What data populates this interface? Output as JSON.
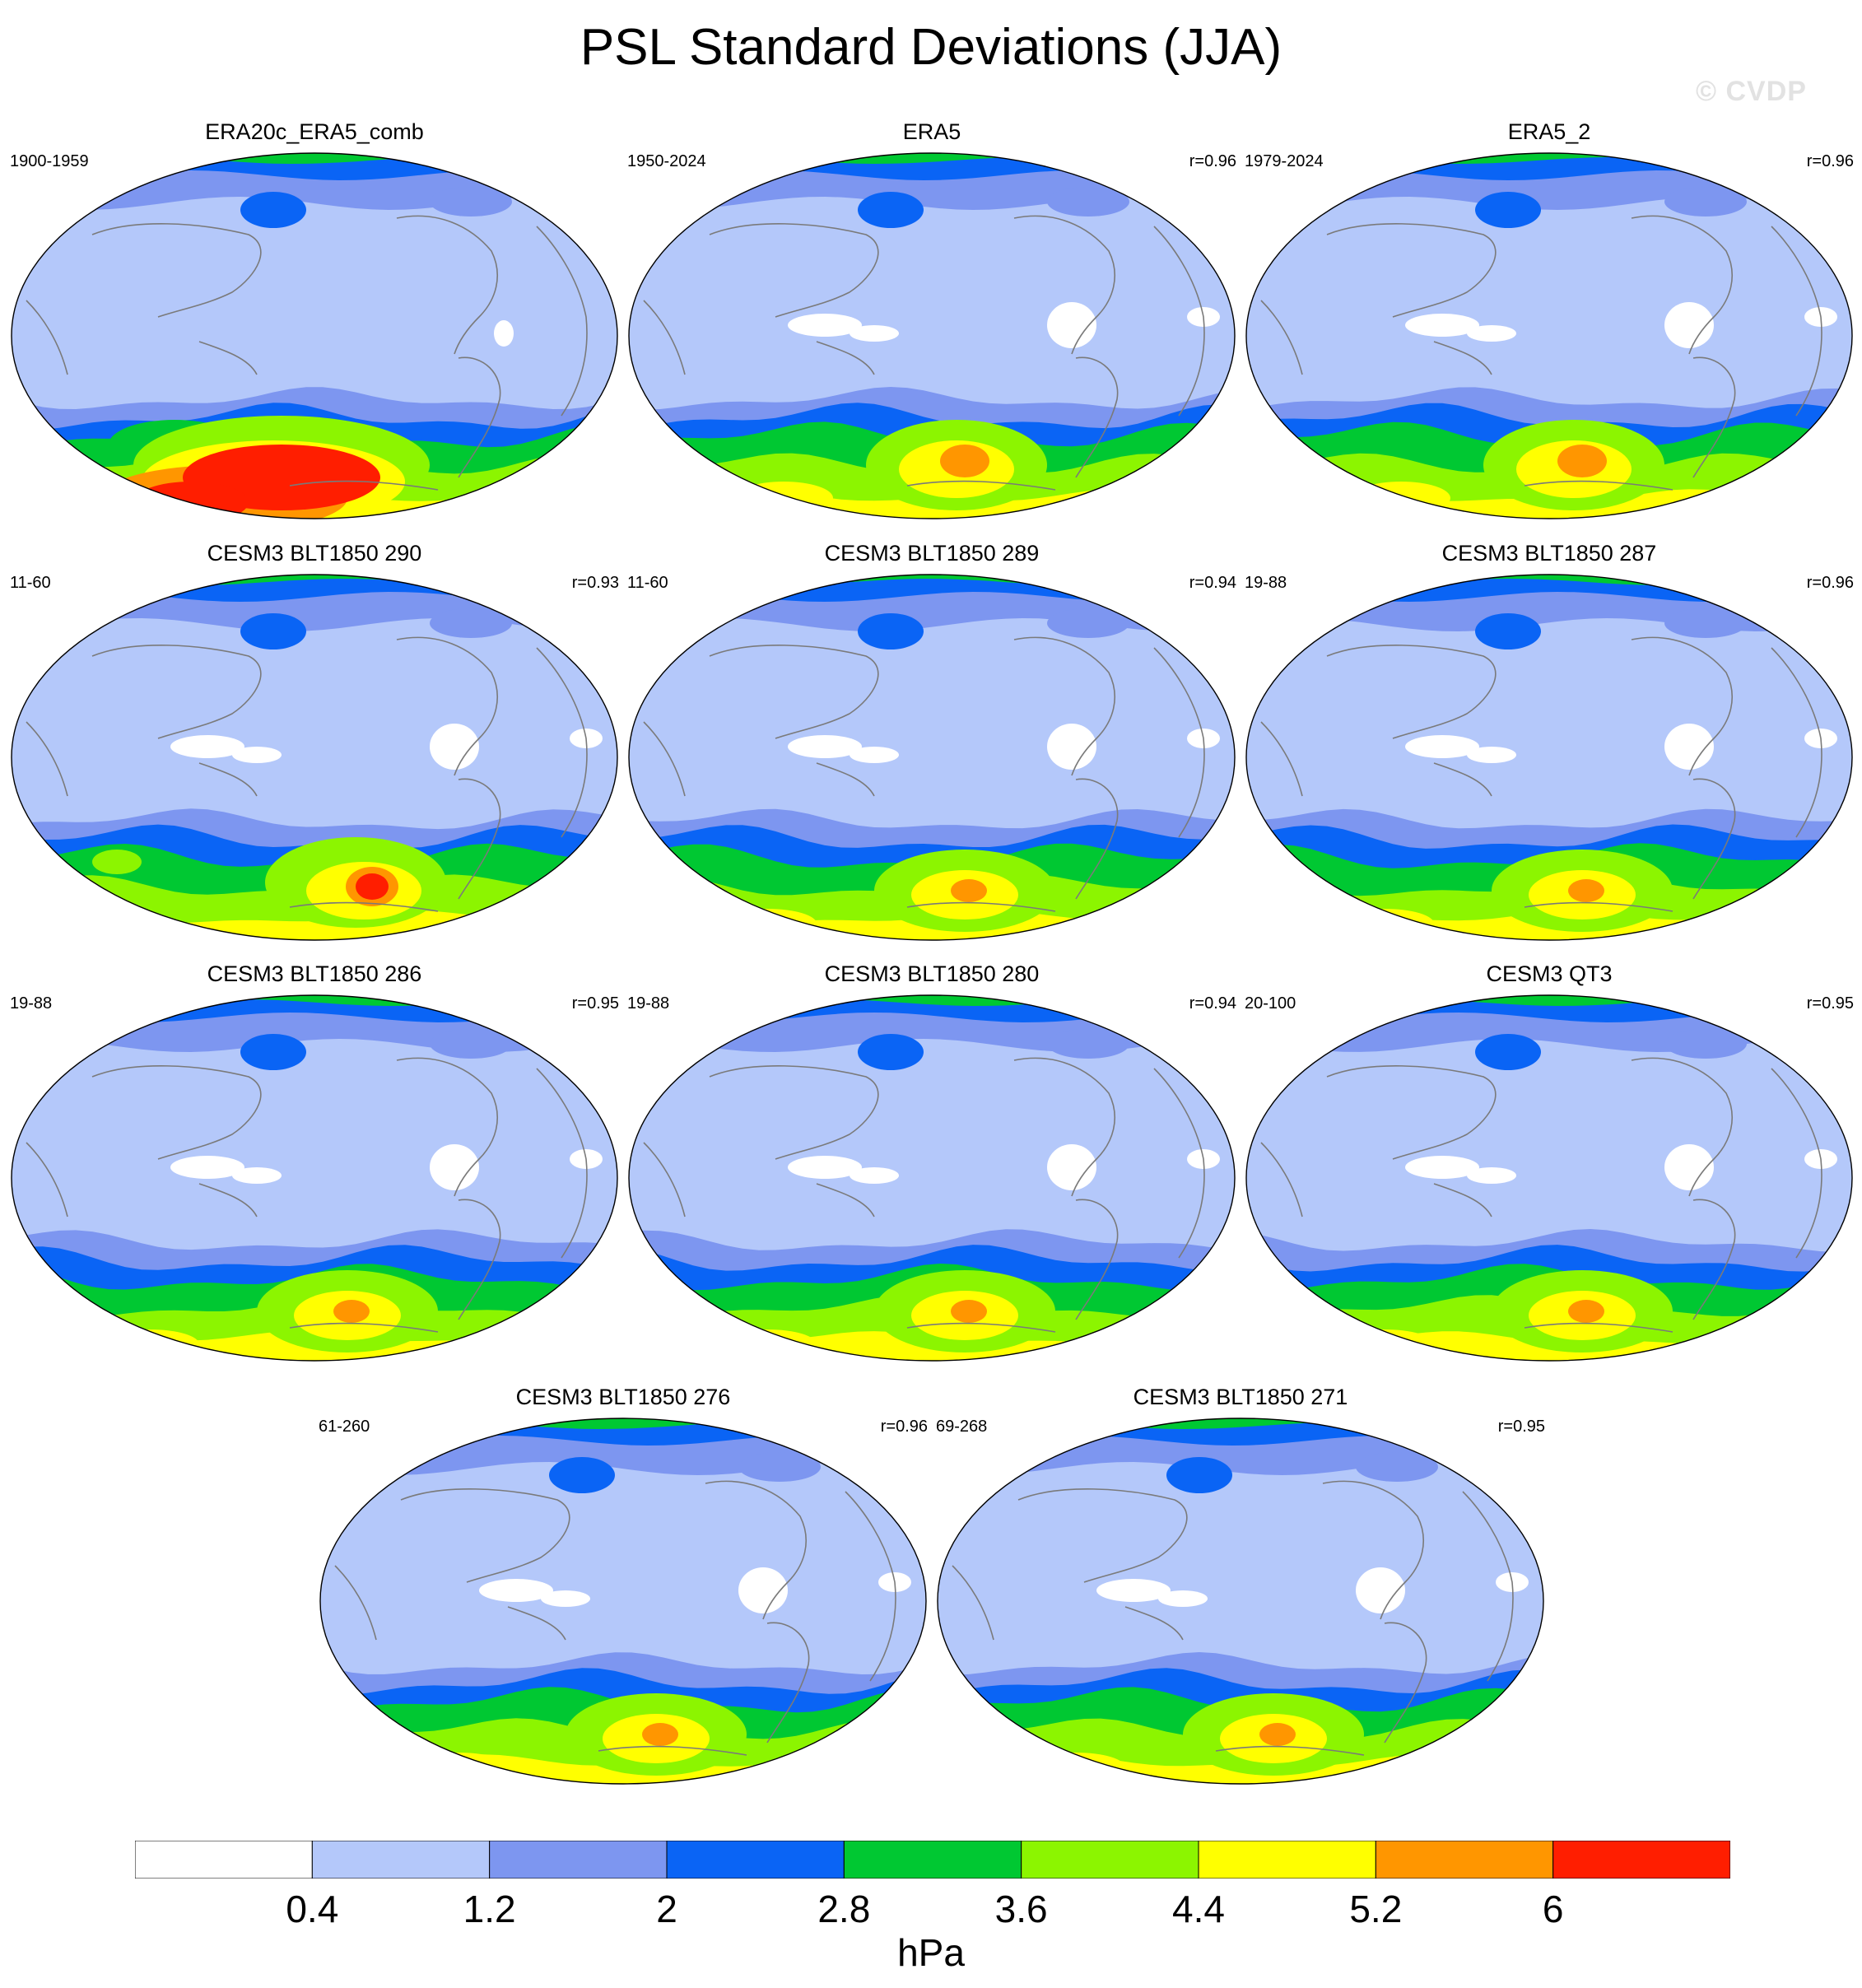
{
  "title": "PSL Standard Deviations (JJA)",
  "watermark": "© CVDP",
  "panels": [
    {
      "title": "ERA20c_ERA5_comb",
      "period": "1900-1959",
      "r": "",
      "variant": "obs20c"
    },
    {
      "title": "ERA5",
      "period": "1950-2024",
      "r": "r=0.96",
      "variant": "era5"
    },
    {
      "title": "ERA5_2",
      "period": "1979-2024",
      "r": "r=0.96",
      "variant": "era5"
    },
    {
      "title": "CESM3 BLT1850 290",
      "period": "11-60",
      "r": "r=0.93",
      "variant": "m290"
    },
    {
      "title": "CESM3 BLT1850 289",
      "period": "11-60",
      "r": "r=0.94",
      "variant": "model"
    },
    {
      "title": "CESM3 BLT1850 287",
      "period": "19-88",
      "r": "r=0.96",
      "variant": "model"
    },
    {
      "title": "CESM3 BLT1850 286",
      "period": "19-88",
      "r": "r=0.95",
      "variant": "model"
    },
    {
      "title": "CESM3 BLT1850 280",
      "period": "19-88",
      "r": "r=0.94",
      "variant": "model"
    },
    {
      "title": "CESM3 QT3",
      "period": "20-100",
      "r": "r=0.95",
      "variant": "model"
    },
    {
      "title": "CESM3 BLT1850 276",
      "period": "61-260",
      "r": "r=0.96",
      "variant": "model"
    },
    {
      "title": "CESM3 BLT1850 271",
      "period": "69-268",
      "r": "r=0.95",
      "variant": "model"
    }
  ],
  "colorbar": {
    "colors": [
      "#ffffff",
      "#b4c8fa",
      "#7d96f0",
      "#0a64f5",
      "#00c832",
      "#8cf500",
      "#ffff00",
      "#ff9600",
      "#ff1e00"
    ],
    "labels": [
      "0.4",
      "1.2",
      "2",
      "2.8",
      "3.6",
      "4.4",
      "5.2",
      "6"
    ],
    "unit": "hPa"
  }
}
